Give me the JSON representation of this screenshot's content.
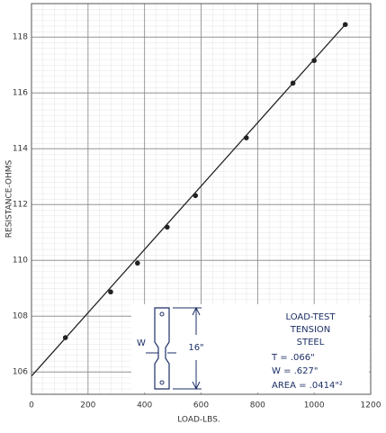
{
  "chart_data": {
    "type": "scatter",
    "xlabel": "LOAD-LBS.",
    "ylabel": "RESISTANCE-OHMS",
    "x": [
      120,
      280,
      375,
      480,
      580,
      760,
      925,
      1000,
      1110
    ],
    "values": [
      107.23,
      108.87,
      109.9,
      111.19,
      112.32,
      114.39,
      116.35,
      117.16,
      118.45
    ],
    "color": "#222222",
    "fit": {
      "x": [
        0,
        1110
      ],
      "y": [
        105.85,
        118.45
      ]
    },
    "xlim": [
      0,
      1200
    ],
    "ylim": [
      105.2,
      119.2
    ],
    "xticks": [
      0,
      200,
      400,
      600,
      800,
      1000,
      1200
    ],
    "yticks": [
      106,
      108,
      110,
      112,
      114,
      116,
      118
    ],
    "grid": true,
    "inset": {
      "title": [
        "LOAD-TEST",
        "TENSION",
        "STEEL"
      ],
      "specs": [
        "T = .066\"",
        "W = .627\"",
        "AREA = .0414\"²"
      ],
      "length": "16\"",
      "width_label": "W"
    }
  }
}
